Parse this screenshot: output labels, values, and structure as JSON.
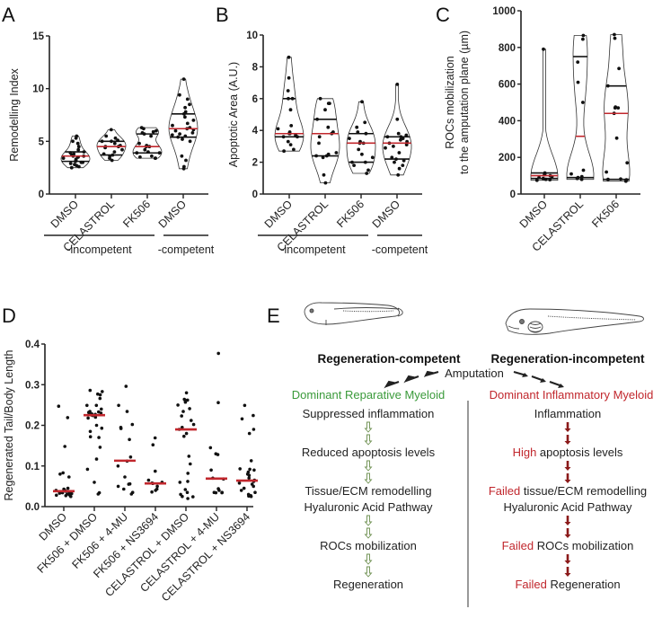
{
  "chart_data": [
    {
      "panel": "A",
      "type": "violin",
      "ylabel": "Remodelling Index",
      "ylim": [
        0,
        15
      ],
      "yticks": [
        "0",
        "5",
        "10",
        "15"
      ],
      "categories": [
        "DMSO",
        "CELASTROL",
        "FK506",
        "DMSO"
      ],
      "groups": [
        {
          "label": "-incompetent",
          "span": [
            0,
            2
          ]
        },
        {
          "label": "-competent",
          "span": [
            3,
            3
          ]
        }
      ],
      "series": [
        {
          "name": "DMSO",
          "median": 3.6,
          "q1": 3.1,
          "q3": 4.0,
          "min": 2.5,
          "max": 5.5,
          "points": [
            2.5,
            2.6,
            2.7,
            2.8,
            2.9,
            3.0,
            3.0,
            3.1,
            3.2,
            3.3,
            3.4,
            3.5,
            3.5,
            3.6,
            3.6,
            3.7,
            3.8,
            3.9,
            4.0,
            4.2,
            4.5,
            4.8,
            5.0,
            5.3,
            5.5
          ]
        },
        {
          "name": "CELASTROL",
          "median": 4.5,
          "q1": 3.7,
          "q3": 5.0,
          "min": 3.2,
          "max": 6.1,
          "points": [
            3.2,
            3.4,
            3.6,
            3.7,
            3.8,
            4.0,
            4.2,
            4.4,
            4.5,
            4.5,
            4.6,
            4.8,
            5.0,
            5.0,
            5.1,
            5.3,
            5.5,
            6.1
          ]
        },
        {
          "name": "FK506",
          "median": 4.5,
          "q1": 3.9,
          "q3": 5.7,
          "min": 3.4,
          "max": 6.3,
          "points": [
            3.4,
            3.4,
            3.5,
            3.6,
            3.9,
            3.9,
            4.0,
            4.2,
            4.5,
            4.5,
            4.6,
            4.8,
            5.5,
            5.7,
            5.8,
            5.9,
            6.0,
            6.2,
            6.3
          ]
        },
        {
          "name": "DMSO",
          "median": 6.2,
          "q1": 5.4,
          "q3": 7.6,
          "min": 2.4,
          "max": 10.9,
          "points": [
            2.4,
            2.6,
            3.2,
            3.6,
            5.0,
            5.2,
            5.4,
            5.5,
            5.6,
            5.7,
            5.8,
            6.0,
            6.1,
            6.2,
            6.3,
            6.5,
            6.7,
            7.0,
            7.3,
            7.6,
            7.8,
            8.2,
            8.5,
            9.0,
            9.4,
            10.9
          ]
        }
      ]
    },
    {
      "panel": "B",
      "type": "violin",
      "ylabel": "Apoptotic Area (A.U.)",
      "ylim": [
        0,
        10
      ],
      "yticks": [
        "0",
        "2",
        "4",
        "6",
        "8",
        "10"
      ],
      "categories": [
        "DMSO",
        "CELASTROL",
        "FK506",
        "DMSO"
      ],
      "groups": [
        {
          "label": "-incompetent",
          "span": [
            0,
            2
          ]
        },
        {
          "label": "-competent",
          "span": [
            3,
            3
          ]
        }
      ],
      "series": [
        {
          "name": "DMSO",
          "median": 3.8,
          "q1": 3.6,
          "q3": 6.0,
          "min": 2.7,
          "max": 8.6,
          "points": [
            2.7,
            2.8,
            3.1,
            3.3,
            3.6,
            3.6,
            3.7,
            3.8,
            3.8,
            3.9,
            4.1,
            4.3,
            5.3,
            6.0,
            6.0,
            6.5,
            7.3,
            8.6
          ]
        },
        {
          "name": "CELASTROL",
          "median": 3.8,
          "q1": 2.4,
          "q3": 4.7,
          "min": 0.7,
          "max": 6.0,
          "points": [
            0.7,
            1.2,
            2.3,
            2.4,
            2.4,
            2.5,
            2.6,
            3.2,
            3.6,
            3.8,
            3.9,
            4.2,
            4.7,
            5.3,
            5.7,
            5.7,
            6.0
          ]
        },
        {
          "name": "FK506",
          "median": 3.2,
          "q1": 2.0,
          "q3": 3.8,
          "min": 1.3,
          "max": 5.8,
          "points": [
            1.3,
            1.5,
            1.8,
            2.0,
            2.0,
            2.3,
            2.5,
            2.8,
            3.2,
            3.2,
            3.3,
            3.5,
            3.8,
            3.9,
            4.2,
            4.5,
            5.8
          ]
        },
        {
          "name": "DMSO",
          "median": 3.2,
          "q1": 2.2,
          "q3": 3.6,
          "min": 1.2,
          "max": 6.9,
          "points": [
            1.2,
            1.6,
            1.8,
            2.0,
            2.1,
            2.2,
            2.3,
            2.6,
            2.9,
            3.0,
            3.1,
            3.2,
            3.3,
            3.4,
            3.5,
            3.6,
            3.6,
            3.7,
            3.8,
            4.7,
            6.9
          ]
        }
      ]
    },
    {
      "panel": "C",
      "type": "violin",
      "ylabel": "ROCs mobilization\nto the amputation plane (µm)",
      "ylabel_lines": [
        "ROCs mobilization",
        "to the amputation plane (µm)"
      ],
      "ylim": [
        0,
        1000
      ],
      "yticks": [
        "0",
        "200",
        "400",
        "600",
        "800",
        "1000"
      ],
      "categories": [
        "DMSO",
        "CELASTROL",
        "FK506"
      ],
      "series": [
        {
          "name": "DMSO",
          "median": 100,
          "q1": 85,
          "q3": 115,
          "min": 75,
          "max": 790,
          "points": [
            75,
            78,
            80,
            85,
            90,
            95,
            100,
            105,
            110,
            115,
            790
          ]
        },
        {
          "name": "CELASTROL",
          "median": 315,
          "q1": 90,
          "q3": 750,
          "min": 80,
          "max": 865,
          "points": [
            80,
            85,
            90,
            95,
            110,
            130,
            500,
            610,
            720,
            845,
            865
          ]
        },
        {
          "name": "FK506",
          "median": 440,
          "q1": 80,
          "q3": 590,
          "min": 70,
          "max": 870,
          "points": [
            70,
            78,
            80,
            82,
            120,
            170,
            305,
            440,
            470,
            470,
            475,
            590,
            685,
            850,
            870
          ]
        }
      ]
    },
    {
      "panel": "D",
      "type": "scatter",
      "ylabel": "Regenerated Tail/Body Length",
      "ylim": [
        0.0,
        0.4
      ],
      "yticks": [
        "0.0",
        "0.1",
        "0.2",
        "0.3",
        "0.4"
      ],
      "categories": [
        "DMSO",
        "FK506 + DMSO",
        "FK506 + 4-MU",
        "FK506 + NS3694",
        "CELASTROL + DMSO",
        "CELASTROL + 4-MU",
        "CELASTROL + NS3694"
      ],
      "series": [
        {
          "name": "DMSO",
          "median": 0.038,
          "points": [
            0.247,
            0.219,
            0.148,
            0.083,
            0.08,
            0.073,
            0.045,
            0.043,
            0.042,
            0.04,
            0.04,
            0.039,
            0.038,
            0.037,
            0.036,
            0.035,
            0.034,
            0.033,
            0.032,
            0.031,
            0.03,
            0.029,
            0.028,
            0.027,
            0.025
          ]
        },
        {
          "name": "FK506 + DMSO",
          "median": 0.225,
          "points": [
            0.286,
            0.283,
            0.277,
            0.275,
            0.266,
            0.249,
            0.249,
            0.24,
            0.234,
            0.233,
            0.232,
            0.23,
            0.229,
            0.228,
            0.227,
            0.225,
            0.224,
            0.22,
            0.218,
            0.2,
            0.193,
            0.185,
            0.172,
            0.17,
            0.146,
            0.117,
            0.092,
            0.06,
            0.034,
            0.031
          ]
        },
        {
          "name": "FK506 + 4-MU",
          "median": 0.113,
          "points": [
            0.296,
            0.249,
            0.234,
            0.202,
            0.195,
            0.192,
            0.165,
            0.122,
            0.112,
            0.1,
            0.073,
            0.056,
            0.055,
            0.05,
            0.043,
            0.035,
            0.031
          ]
        },
        {
          "name": "FK506 + NS3694",
          "median": 0.057,
          "points": [
            0.169,
            0.152,
            0.087,
            0.065,
            0.06,
            0.058,
            0.057,
            0.05,
            0.043,
            0.04,
            0.036
          ]
        },
        {
          "name": "CELASTROL + DMSO",
          "median": 0.19,
          "points": [
            0.28,
            0.264,
            0.262,
            0.262,
            0.257,
            0.25,
            0.241,
            0.234,
            0.223,
            0.212,
            0.202,
            0.195,
            0.19,
            0.18,
            0.173,
            0.124,
            0.105,
            0.082,
            0.062,
            0.06,
            0.042,
            0.035,
            0.03,
            0.025,
            0.024,
            0.02
          ]
        },
        {
          "name": "CELASTROL + 4-MU",
          "median": 0.069,
          "points": [
            0.377,
            0.256,
            0.145,
            0.13,
            0.128,
            0.09,
            0.07,
            0.068,
            0.044,
            0.04,
            0.035,
            0.035,
            0.034,
            0.034
          ]
        },
        {
          "name": "CELASTROL + NS3694",
          "median": 0.064,
          "points": [
            0.249,
            0.224,
            0.216,
            0.19,
            0.18,
            0.113,
            0.093,
            0.092,
            0.09,
            0.085,
            0.08,
            0.077,
            0.07,
            0.065,
            0.062,
            0.058,
            0.055,
            0.05,
            0.045,
            0.04,
            0.035,
            0.03,
            0.027,
            0.026,
            0.025
          ]
        }
      ]
    }
  ],
  "panels": {
    "A": {
      "letter": "A"
    },
    "B": {
      "letter": "B"
    },
    "C": {
      "letter": "C"
    },
    "D": {
      "letter": "D"
    },
    "E": {
      "letter": "E"
    }
  },
  "diagram": {
    "left": {
      "title": "Regeneration-competent",
      "myeloid": "Dominant Reparative Myeloid",
      "steps": [
        {
          "prefix": "",
          "text": "Suppressed inflammation"
        },
        {
          "prefix": "",
          "text": "Reduced apoptosis levels"
        },
        {
          "prefix": "",
          "text": "Tissue/ECM remodelling"
        },
        {
          "prefix": "",
          "text": "Hyaluronic Acid Pathway"
        },
        {
          "prefix": "",
          "text": "ROCs mobilization"
        },
        {
          "prefix": "",
          "text": "Regeneration"
        }
      ],
      "color": "#3a9a3a"
    },
    "right": {
      "title": "Regeneration-incompetent",
      "myeloid": "Dominant Inflammatory Myeloid",
      "steps": [
        {
          "prefix": "",
          "text": "Inflammation"
        },
        {
          "prefix": "High",
          "text": " apoptosis levels"
        },
        {
          "prefix": "Failed",
          "text": " tissue/ECM remodelling"
        },
        {
          "prefix": "",
          "text": "Hyaluronic Acid Pathway"
        },
        {
          "prefix": "Failed",
          "text": " ROCs mobilization"
        },
        {
          "prefix": "Failed",
          "text": " Regeneration"
        }
      ],
      "color": "#c1272d"
    },
    "center": "Amputation"
  },
  "colors": {
    "median": "#c1272d",
    "point": "#111111",
    "green_arrow": "#6b8e4e",
    "red_arrow": "#8b1a1a"
  }
}
